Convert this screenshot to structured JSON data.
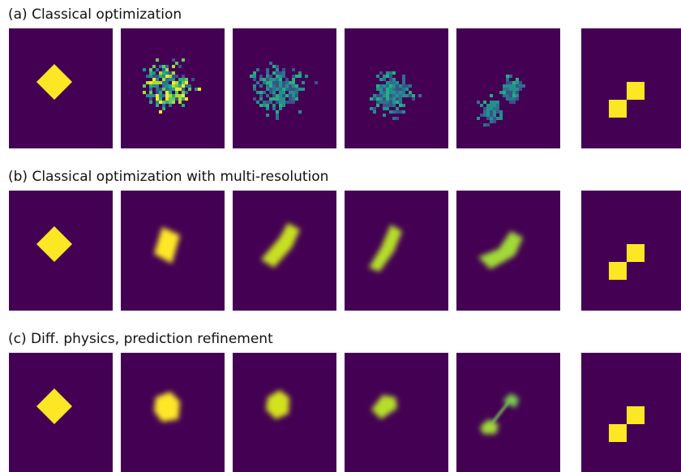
{
  "rows": [
    {
      "title": "(a) Classical optimization"
    },
    {
      "title": "(b) Classical optimization with multi-resolution"
    },
    {
      "title": "(c) Diff. physics, prediction refinement"
    }
  ]
}
